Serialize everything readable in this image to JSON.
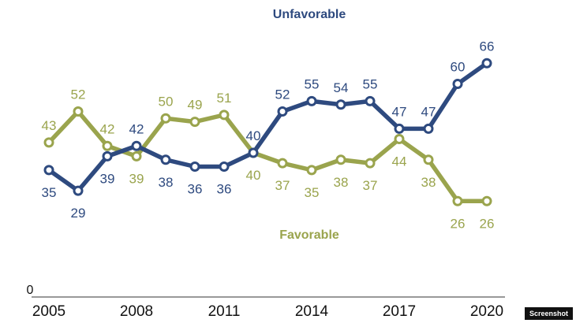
{
  "chart_data": {
    "type": "line",
    "x": [
      2005,
      2006,
      2007,
      2008,
      2009,
      2010,
      2011,
      2012,
      2013,
      2014,
      2015,
      2016,
      2017,
      2018,
      2019,
      2020
    ],
    "xticks": [
      "2005",
      "2008",
      "2011",
      "2014",
      "2017",
      "2020"
    ],
    "y_baseline_label": "0",
    "ylim": [
      0,
      75
    ],
    "series": [
      {
        "name": "Unfavorable",
        "color": "#2e4a7f",
        "values": [
          35,
          29,
          39,
          42,
          38,
          36,
          36,
          40,
          52,
          55,
          54,
          55,
          47,
          47,
          60,
          66
        ],
        "labels": [
          "35",
          "29",
          "39",
          "42",
          "38",
          "36",
          "36",
          "40",
          "52",
          "55",
          "54",
          "55",
          "47",
          "47",
          "60",
          "66"
        ]
      },
      {
        "name": "Favorable",
        "color": "#9aa44d",
        "values": [
          43,
          52,
          42,
          39,
          50,
          49,
          51,
          40,
          37,
          35,
          38,
          37,
          44,
          38,
          26,
          26
        ],
        "labels": [
          "43",
          "52",
          "42",
          "39",
          "50",
          "49",
          "51",
          "40",
          "37",
          "35",
          "38",
          "37",
          "44",
          "38",
          "26",
          "26"
        ]
      }
    ],
    "annotations": {
      "unfavorable": "Unfavorable",
      "favorable": "Favorable"
    }
  },
  "badge_text": "Screenshot"
}
